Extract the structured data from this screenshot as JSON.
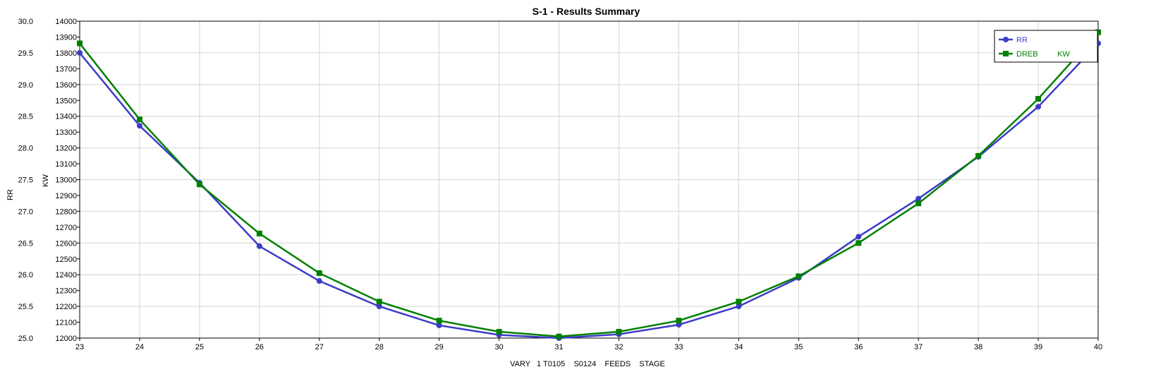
{
  "chart_data": {
    "type": "line",
    "title": "S-1 - Results Summary",
    "xlabel": "VARY   1 T0105    S0124    FEEDS    STAGE",
    "ylabel_left": "RR",
    "ylabel_right": "KW",
    "x": [
      23,
      24,
      25,
      26,
      27,
      28,
      29,
      30,
      31,
      32,
      33,
      34,
      35,
      36,
      37,
      38,
      39,
      40
    ],
    "xlim": [
      23,
      40
    ],
    "ylim_left": [
      25.0,
      30.0
    ],
    "ylim_right": [
      12000,
      14000
    ],
    "yticks_left": [
      "25.0",
      "25.5",
      "26.0",
      "26.5",
      "27.0",
      "27.5",
      "28.0",
      "28.5",
      "29.0",
      "29.5",
      "30.0"
    ],
    "yticks_right": [
      "12000",
      "12100",
      "12200",
      "12300",
      "12400",
      "12500",
      "12600",
      "12700",
      "12800",
      "12900",
      "13000",
      "13100",
      "13200",
      "13300",
      "13400",
      "13500",
      "13600",
      "13700",
      "13800",
      "13900",
      "14000"
    ],
    "grid": true,
    "legend_position": "top-right",
    "series": [
      {
        "name": "RR",
        "axis": "left",
        "color": "#3c3cc8",
        "marker": "circle",
        "values": [
          29.5,
          28.35,
          27.45,
          26.45,
          25.9,
          25.5,
          25.2,
          25.05,
          25.0,
          25.06,
          25.21,
          25.5,
          25.95,
          26.6,
          27.2,
          27.86,
          28.65,
          29.65
        ]
      },
      {
        "name": "DREB         KW",
        "axis": "right",
        "color": "#008000",
        "marker": "square",
        "values": [
          13860,
          13380,
          12970,
          12660,
          12410,
          12230,
          12110,
          12040,
          12010,
          12040,
          12110,
          12230,
          12390,
          12600,
          12850,
          13150,
          13510,
          13930
        ]
      }
    ]
  }
}
